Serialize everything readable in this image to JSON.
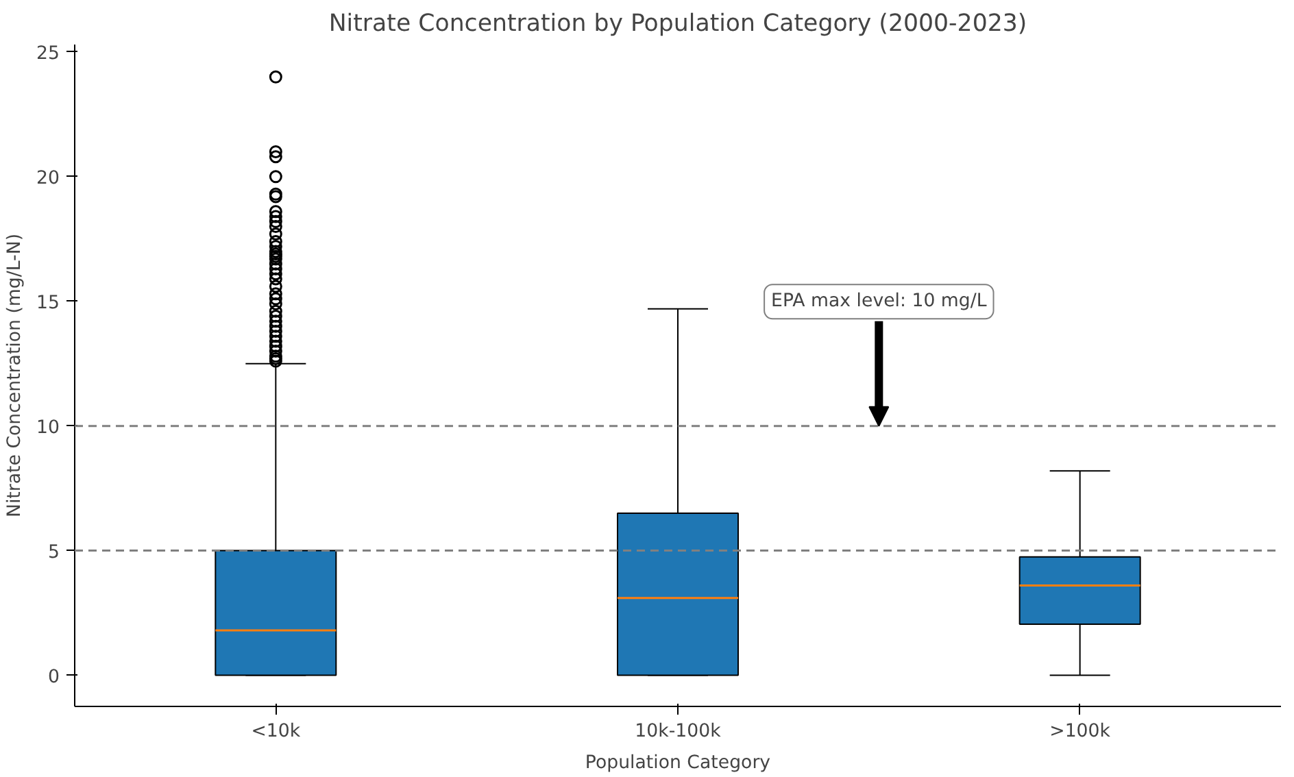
{
  "chart_data": {
    "type": "box",
    "title": "Nitrate Concentration by Population Category (2000-2023)",
    "xlabel": "Population Category",
    "ylabel": "Nitrate Concentration (mg/L-N)",
    "categories": [
      "<10k",
      "10k-100k",
      ">100k"
    ],
    "color": "#1f77b4",
    "boxes": [
      {
        "low": 0,
        "q1": 0,
        "median": 1.8,
        "q3": 5.0,
        "high": 12.5,
        "outliers": [
          12.6,
          12.7,
          12.8,
          13.0,
          13.2,
          13.4,
          13.6,
          13.8,
          14.0,
          14.2,
          14.4,
          14.6,
          14.9,
          15.1,
          15.3,
          15.6,
          15.9,
          16.1,
          16.3,
          16.5,
          16.7,
          16.8,
          16.9,
          17.0,
          17.2,
          17.4,
          17.7,
          18.0,
          18.2,
          18.4,
          18.6,
          19.2,
          19.3,
          20.0,
          20.8,
          21.0,
          24.0
        ]
      },
      {
        "low": 0,
        "q1": 0,
        "median": 3.1,
        "q3": 6.5,
        "high": 14.7
      },
      {
        "low": 0,
        "q1": 2.05,
        "median": 3.6,
        "q3": 4.75,
        "high": 8.2
      }
    ],
    "ylim": [
      -1.25,
      25.3
    ],
    "yticks": [
      0,
      5,
      10,
      15,
      20,
      25
    ],
    "ref_lines": [
      {
        "axis": "y",
        "value": 10,
        "color": "#808080",
        "line_style": "dashed"
      },
      {
        "axis": "y",
        "value": 5,
        "color": "#808080",
        "line_style": "dashed"
      }
    ],
    "annotations": [
      {
        "text": "EPA max level: 10 mg/L",
        "y": 10
      }
    ],
    "grid": false
  }
}
